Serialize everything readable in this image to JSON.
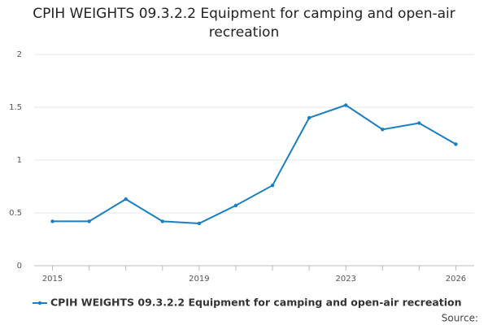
{
  "chart_data": {
    "type": "line",
    "title": "CPIH WEIGHTS 09.3.2.2 Equipment for camping and open-air recreation",
    "x": [
      2015,
      2016,
      2017,
      2018,
      2019,
      2020,
      2021,
      2022,
      2023,
      2024,
      2025,
      2026
    ],
    "series": [
      {
        "name": "CPIH WEIGHTS 09.3.2.2 Equipment for camping and open-air recreation",
        "color": "#1a7fbf",
        "values": [
          0.42,
          0.42,
          0.63,
          0.42,
          0.4,
          0.57,
          0.76,
          1.4,
          1.52,
          1.29,
          1.35,
          1.15
        ]
      }
    ],
    "xlim": [
      2014.5,
      2026.5
    ],
    "xticks": [
      2015,
      2019,
      2023,
      2026
    ],
    "ylim": [
      0,
      2
    ],
    "yticks": [
      0,
      0.5,
      1,
      1.5,
      2
    ],
    "grid": true,
    "source": "Source:"
  }
}
